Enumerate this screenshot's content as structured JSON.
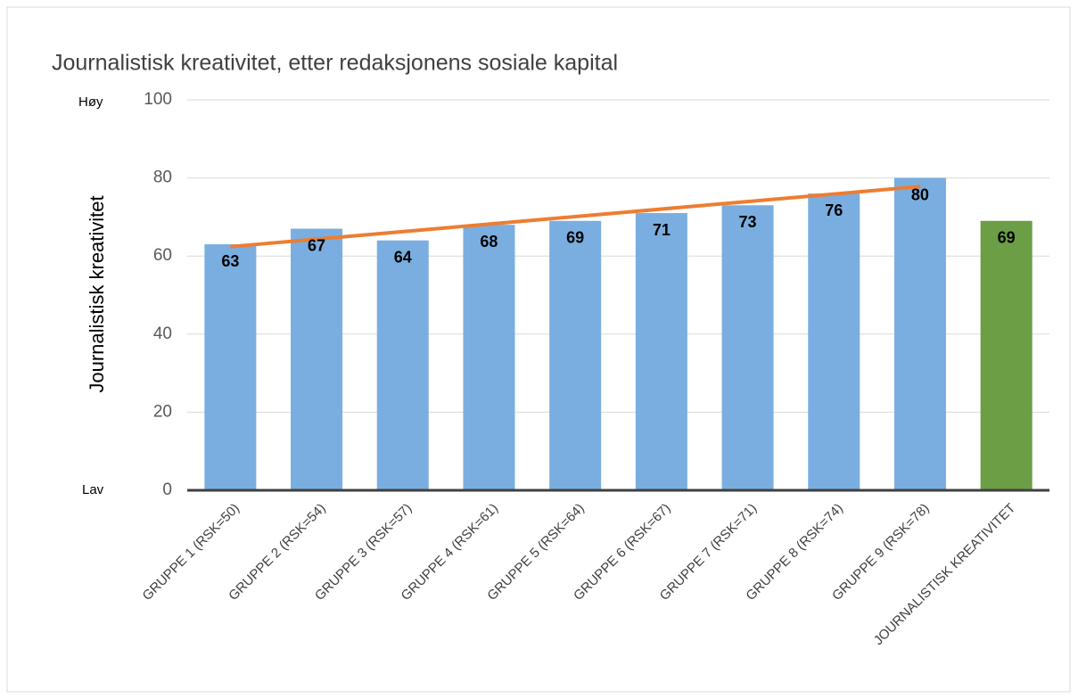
{
  "chart_data": {
    "type": "bar",
    "title": "Journalistisk kreativitet, etter redaksjonens sosiale kapital",
    "y_label": "Journalistisk kreativitet",
    "annotations": [
      "Høy",
      "Lav"
    ],
    "categories": [
      "GRUPPE 1 (RSK=50)",
      "GRUPPE 2 (RSK=54)",
      "GRUPPE 3 (RSK=57)",
      "GRUPPE 4 (RSK=61)",
      "GRUPPE 5  (RSK=64)",
      "GRUPPE 6  (RSK=67)",
      "GRUPPE 7 (RSK=71)",
      "GRUPPE 8 (RSK=74)",
      "GRUPPE 9 (RSK=78)",
      "JOURNALISTISK KREATIVITET"
    ],
    "values": [
      63,
      67,
      64,
      68,
      69,
      71,
      73,
      76,
      80,
      69
    ],
    "colors": [
      "#7aaee0",
      "#7aaee0",
      "#7aaee0",
      "#7aaee0",
      "#7aaee0",
      "#7aaee0",
      "#7aaee0",
      "#7aaee0",
      "#7aaee0",
      "#6b9e45"
    ],
    "trendline": {
      "color": "#ed7d31",
      "values": [
        62.4,
        77.8
      ]
    },
    "ylim": [
      0,
      100
    ],
    "yticks": [
      0,
      20,
      40,
      60,
      80,
      100
    ],
    "grid": true
  }
}
